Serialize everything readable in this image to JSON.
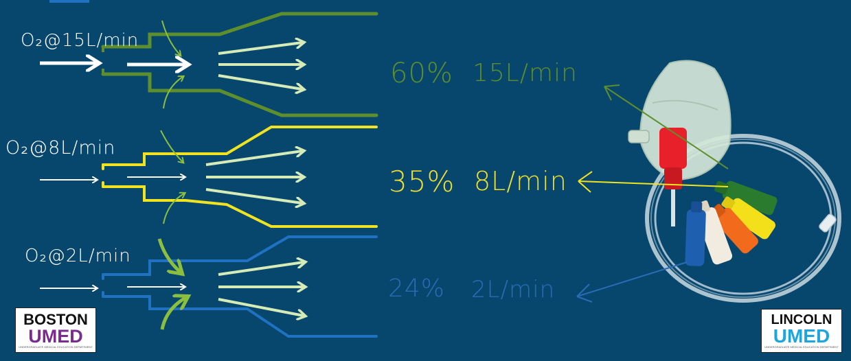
{
  "rows": [
    {
      "inlet_label": "O₂@15L/min",
      "fio2": "60%",
      "flow": "15L/min",
      "color": "#5e8f2c",
      "text_color": "#5e8f2c"
    },
    {
      "inlet_label": "O₂@8L/min",
      "fio2": "35%",
      "flow": "8L/min",
      "color": "#f0e422",
      "text_color": "#efe030"
    },
    {
      "inlet_label": "O₂@2L/min",
      "fio2": "24%",
      "flow": "2L/min",
      "color": "#1f71c1",
      "text_color": "#2a6bb4"
    }
  ],
  "colors": {
    "background": "#07476e",
    "entrained_air_arrow": "#8cbf3f",
    "outflow_arrow": "#d6ecb8",
    "oxygen_arrow": "#ffffff"
  },
  "logos": {
    "left": {
      "line1": "BOSTON",
      "line2": "UMED",
      "line2_color": "#7a2b8e",
      "tagline": "UNDERGRADUATE MEDICAL EDUCATION DEPARTMENT"
    },
    "right": {
      "line1": "LINCOLN",
      "line2": "UMED",
      "line2_color": "#1ea6dc",
      "tagline": "UNDERGRADUATE MEDICAL EDUCATION DEPARTMENT"
    }
  },
  "illustration": {
    "name": "venturi-mask-with-colour-coded-valves",
    "valve_colors": [
      "#e8202a",
      "#2b7b2e",
      "#f4e01a",
      "#f26a1c",
      "#f2ece0",
      "#1f5fb0"
    ]
  }
}
